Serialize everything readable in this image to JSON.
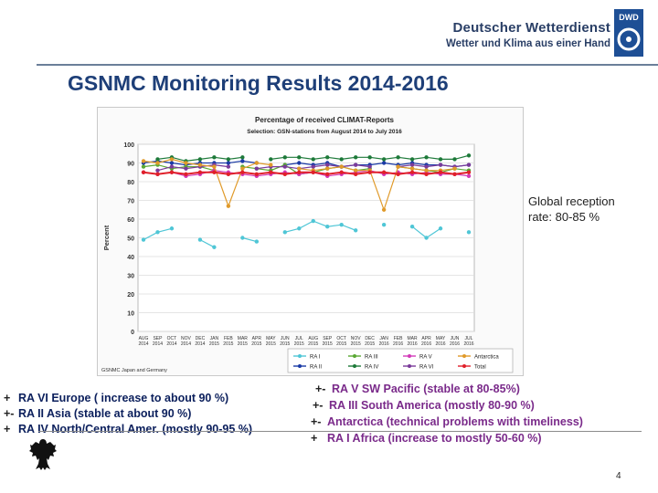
{
  "header": {
    "org_line1": "Deutscher Wetterdienst",
    "org_line2": "Wetter und Klima aus einer Hand",
    "badge": "DWD"
  },
  "slide": {
    "title": "GSNMC Monitoring Results 2014-2016",
    "reception_note": [
      "Global reception",
      "rate: 80-85 %"
    ],
    "page_number": "4"
  },
  "bullets_left": [
    {
      "marker": "+",
      "text": "RA VI  Europe ( increase to about 90 %)"
    },
    {
      "marker": "+-",
      "text": "RA II   Asia (stable at about 90 %)"
    },
    {
      "marker": "+",
      "text": "RA IV North/Central Amer. (mostly 90-95 %)"
    }
  ],
  "bullets_right": [
    {
      "marker": "+-",
      "text": "RA V  SW Pacific (stable at 80-85%)"
    },
    {
      "marker": "+-",
      "text": "RA III  South America (mostly 80-90 %)"
    },
    {
      "marker": "+-",
      "text": "Antarctica (technical problems with timeliness)"
    },
    {
      "marker": "+",
      "text": "RA I   Africa (increase to mostly 50-60 %)"
    }
  ],
  "colors": {
    "title": "#1e3f78",
    "bullet_left": "#0b1f5c",
    "bullet_right": "#7a2a8a",
    "bullet_marker": "#222222"
  },
  "chart_data": {
    "type": "line",
    "title": "Percentage of received CLIMAT-Reports",
    "subtitle": "Selection: GSN-stations from August 2014 to July 2016",
    "ylabel": "Percent",
    "xlabel": "",
    "ylim": [
      0,
      100
    ],
    "yticks": [
      0,
      10,
      20,
      30,
      40,
      50,
      60,
      70,
      80,
      90,
      100
    ],
    "grid": true,
    "legend_position": "bottom",
    "footer_note": "GSNMC Japan and Germany",
    "categories": [
      "AUG 2014",
      "SEP 2014",
      "OCT 2014",
      "NOV 2014",
      "DEC 2014",
      "JAN 2015",
      "FEB 2015",
      "MAR 2015",
      "APR 2015",
      "MAY 2015",
      "JUN 2015",
      "JUL 2015",
      "AUG 2015",
      "SEP 2015",
      "OCT 2015",
      "NOV 2015",
      "DEC 2015",
      "JAN 2016",
      "FEB 2016",
      "MAR 2016",
      "APR 2016",
      "MAY 2016",
      "JUN 2016",
      "JUL 2016"
    ],
    "series": [
      {
        "name": "RA I",
        "color": "#4fc6d6",
        "values": [
          49,
          53,
          55,
          null,
          49,
          45,
          null,
          50,
          48,
          null,
          53,
          55,
          59,
          56,
          57,
          54,
          null,
          57,
          null,
          56,
          50,
          55,
          null,
          53
        ]
      },
      {
        "name": "RA II",
        "color": "#1a3aa6",
        "values": [
          90,
          91,
          90,
          89,
          90,
          90,
          90,
          91,
          90,
          null,
          89,
          90,
          89,
          90,
          88,
          89,
          89,
          90,
          89,
          90,
          89,
          89,
          88,
          89
        ]
      },
      {
        "name": "RA III",
        "color": "#5aa834",
        "values": [
          88,
          89,
          87,
          88,
          88,
          86,
          null,
          88,
          87,
          86,
          89,
          84,
          85,
          87,
          88,
          86,
          87,
          null,
          88,
          87,
          86,
          85,
          87,
          86
        ]
      },
      {
        "name": "RA IV",
        "color": "#1e7a3a",
        "values": [
          null,
          92,
          93,
          91,
          92,
          93,
          92,
          93,
          null,
          92,
          93,
          93,
          92,
          93,
          92,
          93,
          93,
          92,
          93,
          92,
          93,
          92,
          92,
          94
        ]
      },
      {
        "name": "RA V",
        "color": "#d23ab8",
        "values": [
          85,
          84,
          85,
          83,
          84,
          86,
          85,
          84,
          83,
          84,
          85,
          84,
          85,
          83,
          84,
          85,
          86,
          84,
          85,
          84,
          85,
          84,
          84,
          83
        ]
      },
      {
        "name": "RA VI",
        "color": "#7a3a9a",
        "values": [
          null,
          86,
          88,
          87,
          88,
          89,
          88,
          null,
          87,
          88,
          88,
          87,
          88,
          89,
          88,
          89,
          88,
          null,
          88,
          89,
          88,
          89,
          88,
          89
        ]
      },
      {
        "name": "Antarctica",
        "color": "#e09a2a",
        "values": [
          91,
          90,
          92,
          90,
          89,
          88,
          67,
          87,
          90,
          89,
          null,
          87,
          86,
          87,
          88,
          86,
          86,
          65,
          88,
          87,
          86,
          86,
          87,
          null
        ]
      },
      {
        "name": "Total",
        "color": "#e0202a",
        "values": [
          85,
          84,
          85,
          84,
          85,
          85,
          84,
          85,
          84,
          85,
          84,
          85,
          85,
          84,
          85,
          84,
          85,
          85,
          84,
          85,
          84,
          85,
          84,
          85
        ]
      }
    ]
  }
}
